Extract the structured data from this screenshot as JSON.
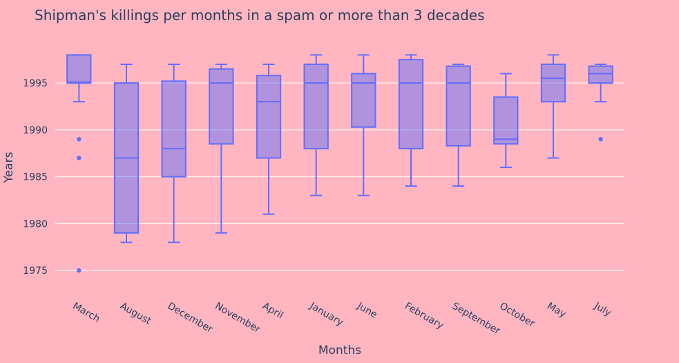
{
  "chart_data": {
    "type": "box",
    "title": "Shipman's killings per months in a spam or more than 3 decades",
    "xlabel": "Months",
    "ylabel": "Years",
    "ylim": [
      1972.5,
      1999.8
    ],
    "yticks": [
      1975,
      1980,
      1985,
      1990,
      1995
    ],
    "grid": true,
    "colors": {
      "box": "#636efa",
      "background": "#ffb6c1",
      "grid": "#ffffff",
      "text": "#2a3f5f"
    },
    "categories": [
      "March",
      "August",
      "December",
      "November",
      "April",
      "January",
      "June",
      "February",
      "September",
      "October",
      "May",
      "July"
    ],
    "boxes": [
      {
        "month": "March",
        "min": 1993,
        "q1": 1995,
        "median": 1995.1,
        "q3": 1998,
        "max": 1998,
        "outliers": [
          1989,
          1987,
          1975
        ]
      },
      {
        "month": "August",
        "min": 1978,
        "q1": 1979,
        "median": 1987,
        "q3": 1995,
        "max": 1997,
        "outliers": []
      },
      {
        "month": "December",
        "min": 1978,
        "q1": 1985,
        "median": 1988,
        "q3": 1995.2,
        "max": 1997,
        "outliers": []
      },
      {
        "month": "November",
        "min": 1979,
        "q1": 1988.5,
        "median": 1995,
        "q3": 1996.5,
        "max": 1997,
        "outliers": []
      },
      {
        "month": "April",
        "min": 1981,
        "q1": 1987,
        "median": 1993,
        "q3": 1995.8,
        "max": 1997,
        "outliers": []
      },
      {
        "month": "January",
        "min": 1983,
        "q1": 1988,
        "median": 1995,
        "q3": 1997,
        "max": 1998,
        "outliers": []
      },
      {
        "month": "June",
        "min": 1983,
        "q1": 1990.3,
        "median": 1995,
        "q3": 1996,
        "max": 1998,
        "outliers": []
      },
      {
        "month": "February",
        "min": 1984,
        "q1": 1988,
        "median": 1995,
        "q3": 1997.5,
        "max": 1998,
        "outliers": []
      },
      {
        "month": "September",
        "min": 1984,
        "q1": 1988.3,
        "median": 1995,
        "q3": 1996.8,
        "max": 1997,
        "outliers": []
      },
      {
        "month": "October",
        "min": 1986,
        "q1": 1988.5,
        "median": 1989,
        "q3": 1993.5,
        "max": 1996,
        "outliers": []
      },
      {
        "month": "May",
        "min": 1987,
        "q1": 1993,
        "median": 1995.5,
        "q3": 1997,
        "max": 1998,
        "outliers": []
      },
      {
        "month": "July",
        "min": 1993,
        "q1": 1995,
        "median": 1996,
        "q3": 1996.8,
        "max": 1997,
        "outliers": [
          1989
        ]
      }
    ]
  }
}
